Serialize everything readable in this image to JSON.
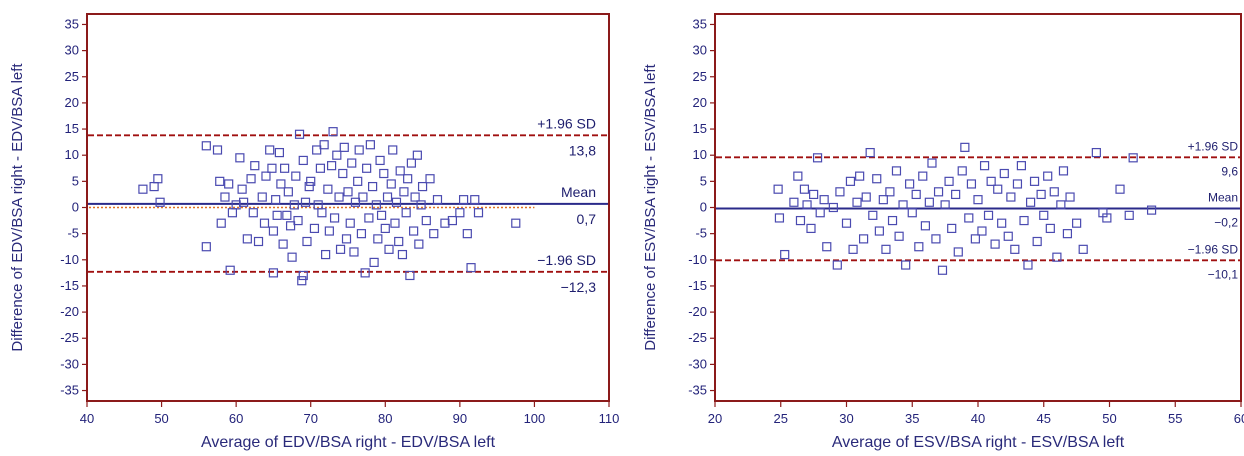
{
  "chart_data": [
    {
      "type": "scatter",
      "title": "",
      "xlabel": "Average of EDV/BSA right - EDV/BSA left",
      "ylabel": "Difference of EDV/BSA right - EDV/BSA left",
      "xlim": [
        40,
        110
      ],
      "ylim": [
        -37,
        37
      ],
      "xticks": [
        "40",
        "50",
        "60",
        "70",
        "80",
        "90",
        "100",
        "110"
      ],
      "yticks": [
        "35",
        "30",
        "25",
        "20",
        "15",
        "10",
        "5",
        "0",
        "-5",
        "-10",
        "-15",
        "-20",
        "-25",
        "-30",
        "-35"
      ],
      "grid": false,
      "reference_lines": [
        {
          "label": "+1.96 SD",
          "value_label": "13,8",
          "value": 13.8,
          "style": "dashed",
          "color": "#a01010"
        },
        {
          "label": "Mean",
          "value_label": "0,7",
          "value": 0.7,
          "style": "solid",
          "color": "#2a2a8a"
        },
        {
          "label": "−1.96 SD",
          "value_label": "−12,3",
          "value": -12.3,
          "style": "dashed",
          "color": "#a01010"
        }
      ],
      "zero_line": {
        "value": 0,
        "style": "dotted",
        "color": "#e07020",
        "x_range": [
          40,
          100
        ]
      },
      "marker": {
        "shape": "square-open",
        "color": "#4a4ab0"
      },
      "points": [
        [
          47.5,
          3.5
        ],
        [
          49.0,
          4.0
        ],
        [
          49.5,
          5.5
        ],
        [
          49.8,
          1.0
        ],
        [
          56.0,
          11.8
        ],
        [
          56.0,
          -7.5
        ],
        [
          57.5,
          11.0
        ],
        [
          57.8,
          5.0
        ],
        [
          58.0,
          -3.0
        ],
        [
          58.5,
          2.0
        ],
        [
          59.0,
          4.5
        ],
        [
          59.2,
          -12.0
        ],
        [
          59.5,
          -1.0
        ],
        [
          60.0,
          0.5
        ],
        [
          60.5,
          9.5
        ],
        [
          60.8,
          3.5
        ],
        [
          61.0,
          1.0
        ],
        [
          61.5,
          -6.0
        ],
        [
          62.0,
          5.5
        ],
        [
          62.3,
          -1.0
        ],
        [
          62.5,
          8.0
        ],
        [
          63.0,
          -6.5
        ],
        [
          63.5,
          2.0
        ],
        [
          63.8,
          -3.0
        ],
        [
          64.0,
          6.0
        ],
        [
          64.5,
          11.0
        ],
        [
          64.8,
          7.5
        ],
        [
          65.0,
          -4.5
        ],
        [
          65.0,
          -12.5
        ],
        [
          65.3,
          1.5
        ],
        [
          65.5,
          -1.5
        ],
        [
          65.8,
          10.5
        ],
        [
          66.0,
          4.5
        ],
        [
          66.3,
          -7.0
        ],
        [
          66.5,
          7.5
        ],
        [
          66.8,
          -1.5
        ],
        [
          67.0,
          3.0
        ],
        [
          67.3,
          -3.5
        ],
        [
          67.5,
          -9.5
        ],
        [
          67.8,
          0.5
        ],
        [
          68.0,
          6.0
        ],
        [
          68.3,
          -2.5
        ],
        [
          68.5,
          14.0
        ],
        [
          68.8,
          -14.0
        ],
        [
          69.0,
          -13.0
        ],
        [
          69.0,
          9.0
        ],
        [
          69.3,
          1.0
        ],
        [
          69.5,
          -6.5
        ],
        [
          69.8,
          4.0
        ],
        [
          70.0,
          5.0
        ],
        [
          70.5,
          -4.0
        ],
        [
          70.8,
          11.0
        ],
        [
          71.0,
          0.5
        ],
        [
          71.3,
          7.5
        ],
        [
          71.5,
          -1.0
        ],
        [
          71.8,
          12.0
        ],
        [
          72.0,
          -9.0
        ],
        [
          72.3,
          3.5
        ],
        [
          72.5,
          -4.5
        ],
        [
          72.8,
          8.0
        ],
        [
          73.0,
          14.5
        ],
        [
          73.2,
          -2.0
        ],
        [
          73.5,
          10.0
        ],
        [
          73.8,
          2.0
        ],
        [
          74.0,
          -8.0
        ],
        [
          74.3,
          6.5
        ],
        [
          74.5,
          11.5
        ],
        [
          74.8,
          -6.0
        ],
        [
          75.0,
          3.0
        ],
        [
          75.3,
          -3.0
        ],
        [
          75.5,
          8.5
        ],
        [
          75.8,
          -8.5
        ],
        [
          76.0,
          1.0
        ],
        [
          76.3,
          5.0
        ],
        [
          76.5,
          11.0
        ],
        [
          76.8,
          -5.0
        ],
        [
          77.0,
          2.0
        ],
        [
          77.3,
          -12.5
        ],
        [
          77.5,
          7.5
        ],
        [
          77.8,
          -2.0
        ],
        [
          78.0,
          12.0
        ],
        [
          78.3,
          4.0
        ],
        [
          78.5,
          -10.5
        ],
        [
          78.8,
          0.5
        ],
        [
          79.0,
          -6.0
        ],
        [
          79.3,
          9.0
        ],
        [
          79.5,
          -1.5
        ],
        [
          79.8,
          6.5
        ],
        [
          80.0,
          -4.0
        ],
        [
          80.3,
          2.0
        ],
        [
          80.5,
          -8.0
        ],
        [
          80.8,
          4.5
        ],
        [
          81.0,
          11.0
        ],
        [
          81.3,
          -3.0
        ],
        [
          81.5,
          1.0
        ],
        [
          81.8,
          -6.5
        ],
        [
          82.0,
          7.0
        ],
        [
          82.3,
          -9.0
        ],
        [
          82.5,
          3.0
        ],
        [
          82.8,
          -1.0
        ],
        [
          83.0,
          5.5
        ],
        [
          83.3,
          -13.0
        ],
        [
          83.5,
          8.5
        ],
        [
          83.8,
          -4.5
        ],
        [
          84.0,
          2.0
        ],
        [
          84.3,
          10.0
        ],
        [
          84.5,
          -7.0
        ],
        [
          84.8,
          0.5
        ],
        [
          85.0,
          4.0
        ],
        [
          85.5,
          -2.5
        ],
        [
          86.0,
          5.5
        ],
        [
          86.5,
          -5.0
        ],
        [
          87.0,
          1.5
        ],
        [
          88.0,
          -3.0
        ],
        [
          89.0,
          -2.5
        ],
        [
          90.0,
          -1.0
        ],
        [
          90.5,
          1.5
        ],
        [
          91.0,
          -5.0
        ],
        [
          91.5,
          -11.5
        ],
        [
          92.0,
          1.5
        ],
        [
          92.5,
          -1.0
        ],
        [
          97.5,
          -3.0
        ]
      ]
    },
    {
      "type": "scatter",
      "title": "",
      "xlabel": "Average of ESV/BSA right - ESV/BSA left",
      "ylabel": "Difference of ESV/BSA right - ESV/BSA left",
      "xlim": [
        20,
        60
      ],
      "ylim": [
        -37,
        37
      ],
      "xticks": [
        "20",
        "25",
        "30",
        "35",
        "40",
        "45",
        "50",
        "55",
        "60"
      ],
      "yticks": [
        "35",
        "30",
        "25",
        "20",
        "15",
        "10",
        "5",
        "0",
        "-5",
        "-10",
        "-15",
        "-20",
        "-25",
        "-30",
        "-35"
      ],
      "grid": false,
      "reference_lines": [
        {
          "label": "+1.96 SD",
          "value_label": "9,6",
          "value": 9.6,
          "style": "dashed",
          "color": "#a01010"
        },
        {
          "label": "Mean",
          "value_label": "−0,2",
          "value": -0.2,
          "style": "solid",
          "color": "#2a2a8a"
        },
        {
          "label": "−1.96 SD",
          "value_label": "−10,1",
          "value": -10.1,
          "style": "dashed",
          "color": "#a01010"
        }
      ],
      "marker": {
        "shape": "square-open",
        "color": "#4a4ab0"
      },
      "points": [
        [
          24.8,
          3.5
        ],
        [
          24.9,
          -2.0
        ],
        [
          25.3,
          -9.0
        ],
        [
          26.0,
          1.0
        ],
        [
          26.3,
          6.0
        ],
        [
          26.5,
          -2.5
        ],
        [
          26.8,
          3.5
        ],
        [
          27.0,
          0.5
        ],
        [
          27.3,
          -4.0
        ],
        [
          27.5,
          2.5
        ],
        [
          27.8,
          9.5
        ],
        [
          28.0,
          -1.0
        ],
        [
          28.3,
          1.5
        ],
        [
          28.5,
          -7.5
        ],
        [
          29.0,
          0.0
        ],
        [
          29.3,
          -11.0
        ],
        [
          29.5,
          3.0
        ],
        [
          30.0,
          -3.0
        ],
        [
          30.3,
          5.0
        ],
        [
          30.5,
          -8.0
        ],
        [
          30.8,
          1.0
        ],
        [
          31.0,
          6.0
        ],
        [
          31.3,
          -6.0
        ],
        [
          31.5,
          2.0
        ],
        [
          31.8,
          10.5
        ],
        [
          32.0,
          -1.5
        ],
        [
          32.3,
          5.5
        ],
        [
          32.5,
          -4.5
        ],
        [
          32.8,
          1.5
        ],
        [
          33.0,
          -8.0
        ],
        [
          33.3,
          3.0
        ],
        [
          33.5,
          -2.5
        ],
        [
          33.8,
          7.0
        ],
        [
          34.0,
          -5.5
        ],
        [
          34.3,
          0.5
        ],
        [
          34.5,
          -11.0
        ],
        [
          34.8,
          4.5
        ],
        [
          35.0,
          -1.0
        ],
        [
          35.3,
          2.5
        ],
        [
          35.5,
          -7.5
        ],
        [
          35.8,
          6.0
        ],
        [
          36.0,
          -3.5
        ],
        [
          36.3,
          1.0
        ],
        [
          36.5,
          8.5
        ],
        [
          36.8,
          -6.0
        ],
        [
          37.0,
          3.0
        ],
        [
          37.3,
          -12.0
        ],
        [
          37.5,
          0.5
        ],
        [
          37.8,
          5.0
        ],
        [
          38.0,
          -4.0
        ],
        [
          38.3,
          2.5
        ],
        [
          38.5,
          -8.5
        ],
        [
          38.8,
          7.0
        ],
        [
          39.0,
          11.5
        ],
        [
          39.3,
          -2.0
        ],
        [
          39.5,
          4.5
        ],
        [
          39.8,
          -6.0
        ],
        [
          40.0,
          1.5
        ],
        [
          40.3,
          -4.5
        ],
        [
          40.5,
          8.0
        ],
        [
          40.8,
          -1.5
        ],
        [
          41.0,
          5.0
        ],
        [
          41.3,
          -7.0
        ],
        [
          41.5,
          3.5
        ],
        [
          41.8,
          -3.0
        ],
        [
          42.0,
          6.5
        ],
        [
          42.3,
          -5.5
        ],
        [
          42.5,
          2.0
        ],
        [
          42.8,
          -8.0
        ],
        [
          43.0,
          4.5
        ],
        [
          43.3,
          8.0
        ],
        [
          43.5,
          -2.5
        ],
        [
          43.8,
          -11.0
        ],
        [
          44.0,
          1.0
        ],
        [
          44.3,
          5.0
        ],
        [
          44.5,
          -6.5
        ],
        [
          44.8,
          2.5
        ],
        [
          45.0,
          -1.5
        ],
        [
          45.3,
          6.0
        ],
        [
          45.5,
          -4.0
        ],
        [
          45.8,
          3.0
        ],
        [
          46.0,
          -9.5
        ],
        [
          46.3,
          0.5
        ],
        [
          46.5,
          7.0
        ],
        [
          46.8,
          -5.0
        ],
        [
          47.0,
          2.0
        ],
        [
          47.5,
          -3.0
        ],
        [
          48.0,
          -8.0
        ],
        [
          49.0,
          10.5
        ],
        [
          49.5,
          -1.0
        ],
        [
          49.8,
          -2.0
        ],
        [
          50.8,
          3.5
        ],
        [
          51.5,
          -1.5
        ],
        [
          51.8,
          9.5
        ],
        [
          53.2,
          -0.5
        ]
      ]
    }
  ]
}
